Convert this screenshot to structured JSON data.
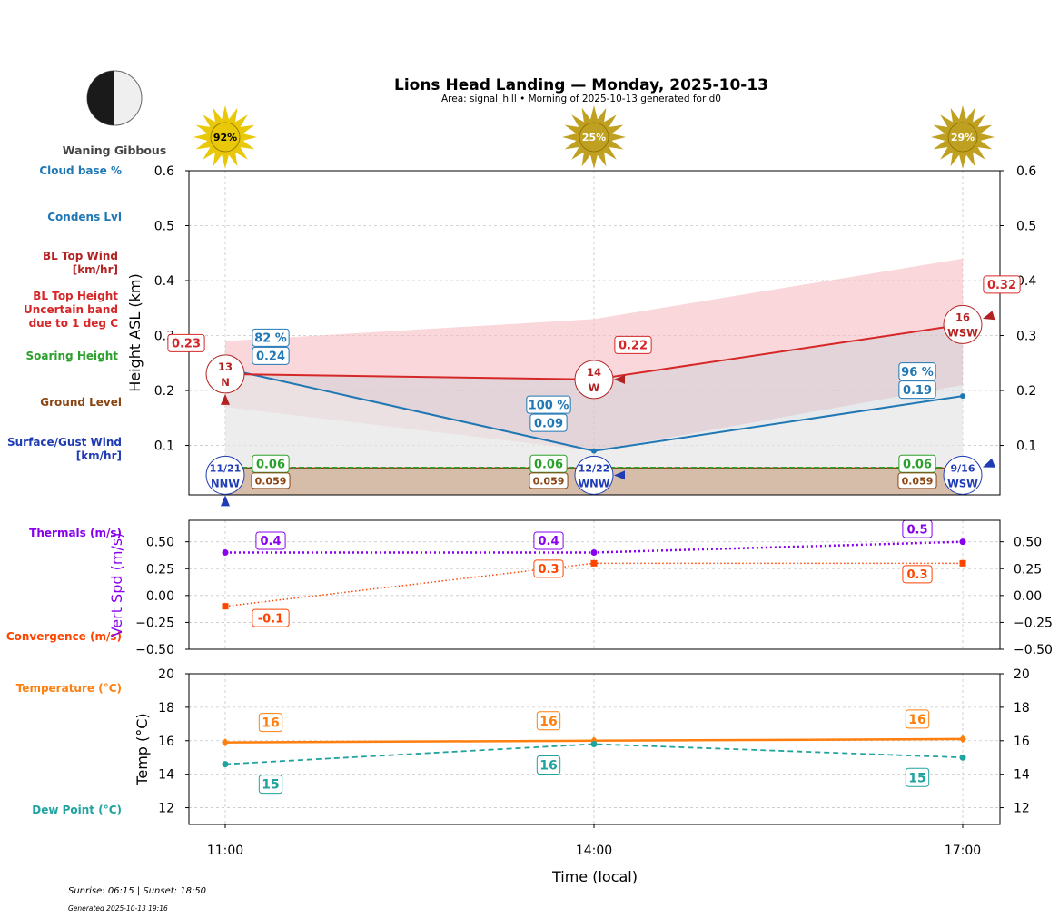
{
  "title": "Lions Head Landing — Monday, 2025-10-13",
  "subtitle": "Area: signal_hill • Morning of 2025-10-13 generated for d0",
  "moon": {
    "phase": "Waning Gibbous"
  },
  "footer": {
    "sun": "Sunrise: 06:15 | Sunset: 18:50",
    "generated": "Generated 2025-10-13 19:16"
  },
  "colors": {
    "cloud": "#1f77b4",
    "bl_wind": "#b22222",
    "bl_top": "#d62728",
    "soaring": "#2ca02c",
    "ground": "#8b4513",
    "surface_wind": "#1f3cb4",
    "thermal": "#8800ee",
    "convergence": "#ff4400",
    "temp": "#ff7f0e",
    "dew": "#20a39e",
    "sun_bright": "#e8c808",
    "sun_dim": "#c0a020"
  },
  "row_labels": {
    "cloud_base": "Cloud base %",
    "condens": "Condens Lvl",
    "bl_top_wind": [
      "BL Top Wind",
      "[km/hr]"
    ],
    "bl_top_height": [
      "BL Top Height",
      "Uncertain band",
      "due to 1 deg C"
    ],
    "soaring": "Soaring Height",
    "ground": "Ground Level",
    "surface_wind": [
      "Surface/Gust Wind",
      "[km/hr]"
    ],
    "thermals": "Thermals (m/s)",
    "convergence": "Convergence (m/s)",
    "temperature": "Temperature (°C)",
    "dew_point": "Dew Point (°C)"
  },
  "chart_data": [
    {
      "type": "line",
      "panel": "height",
      "x": [
        "11:00",
        "14:00",
        "17:00"
      ],
      "ylabel": "Height ASL (km)",
      "ylim": [
        0.01,
        0.6
      ],
      "yticks": [
        0.1,
        0.2,
        0.3,
        0.4,
        0.5,
        0.6
      ],
      "sun_percent": [
        "92%",
        "25%",
        "29%"
      ],
      "cloud_base_pct": [
        "82 %",
        "100 %",
        "96 %"
      ],
      "condens_level": [
        0.24,
        0.09,
        0.19
      ],
      "condens_labels": [
        "0.24",
        "0.09",
        "0.19"
      ],
      "bl_top": [
        0.23,
        0.22,
        0.32
      ],
      "bl_top_labels": [
        "0.23",
        "0.22",
        "0.32"
      ],
      "bl_band_low": [
        0.17,
        0.09,
        0.21
      ],
      "bl_band_high": [
        0.29,
        0.33,
        0.44
      ],
      "bl_wind": [
        {
          "speed": "13",
          "dir": "N"
        },
        {
          "speed": "14",
          "dir": "W"
        },
        {
          "speed": "16",
          "dir": "WSW"
        }
      ],
      "soaring_height": [
        0.06,
        0.06,
        0.06
      ],
      "soaring_labels": [
        "0.06",
        "0.06",
        "0.06"
      ],
      "ground_level": [
        0.059,
        0.059,
        0.059
      ],
      "ground_labels": [
        "0.059",
        "0.059",
        "0.059"
      ],
      "surface_wind": [
        {
          "speed": "11/21",
          "dir": "NNW"
        },
        {
          "speed": "12/22",
          "dir": "WNW"
        },
        {
          "speed": "9/16",
          "dir": "WSW"
        }
      ]
    },
    {
      "type": "line",
      "panel": "vertical_speed",
      "x": [
        "11:00",
        "14:00",
        "17:00"
      ],
      "ylabel": "Vert Spd (m/s)",
      "ylim": [
        -0.5,
        0.7
      ],
      "yticks": [
        -0.5,
        -0.25,
        0.0,
        0.25,
        0.5
      ],
      "ytick_labels": [
        "−0.50",
        "−0.25",
        "0.00",
        "0.25",
        "0.50"
      ],
      "series": [
        {
          "name": "Thermals (m/s)",
          "values": [
            0.4,
            0.4,
            0.5
          ],
          "labels": [
            "0.4",
            "0.4",
            "0.5"
          ]
        },
        {
          "name": "Convergence (m/s)",
          "values": [
            -0.1,
            0.3,
            0.3
          ],
          "labels": [
            "-0.1",
            "0.3",
            "0.3"
          ]
        }
      ]
    },
    {
      "type": "line",
      "panel": "temperature",
      "x": [
        "11:00",
        "14:00",
        "17:00"
      ],
      "xlabel": "Time (local)",
      "ylabel": "Temp (°C)",
      "ylim": [
        11,
        20
      ],
      "yticks": [
        12,
        14,
        16,
        18,
        20
      ],
      "series": [
        {
          "name": "Temperature (°C)",
          "values": [
            15.9,
            16.0,
            16.1
          ],
          "labels": [
            "16",
            "16",
            "16"
          ]
        },
        {
          "name": "Dew Point (°C)",
          "values": [
            14.6,
            15.8,
            15.0
          ],
          "labels": [
            "15",
            "16",
            "15"
          ]
        }
      ]
    }
  ]
}
